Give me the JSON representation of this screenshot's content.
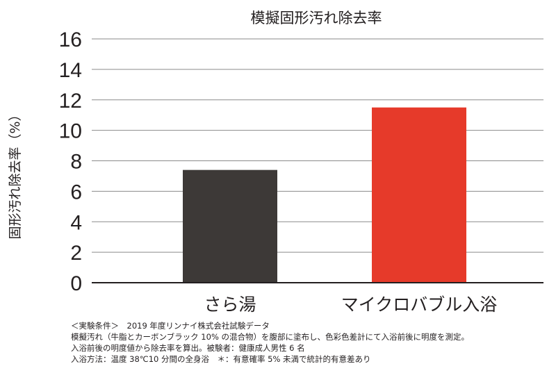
{
  "chart_data": {
    "type": "bar",
    "title": "模擬固形汚れ除去率",
    "ylabel": "固形汚れ除去率（%）",
    "xlabel": "",
    "categories": [
      "さら湯",
      "マイクロバブル入浴"
    ],
    "values": [
      7.4,
      11.5
    ],
    "ylim": [
      0,
      16
    ],
    "yticks": [
      "0",
      "2",
      "4",
      "6",
      "8",
      "10",
      "12",
      "14",
      "16"
    ],
    "grid": true,
    "bar_colors": [
      "#3d3937",
      "#e63a2a"
    ]
  },
  "notes": {
    "line1": "＜実験条件＞　2019 年度リンナイ株式会社試験データ",
    "line2": "模擬汚れ（牛脂とカーボンブラック 10% の混合物）を腹部に塗布し、色彩色差計にて入浴前後に明度を測定。",
    "line3": "入浴前後の明度値から除去率を算出。被験者：健康成人男性 6 名",
    "line4": "入浴方法：温度 38℃10 分間の全身浴　＊：有意確率 5% 未満で統計的有意差あり"
  }
}
